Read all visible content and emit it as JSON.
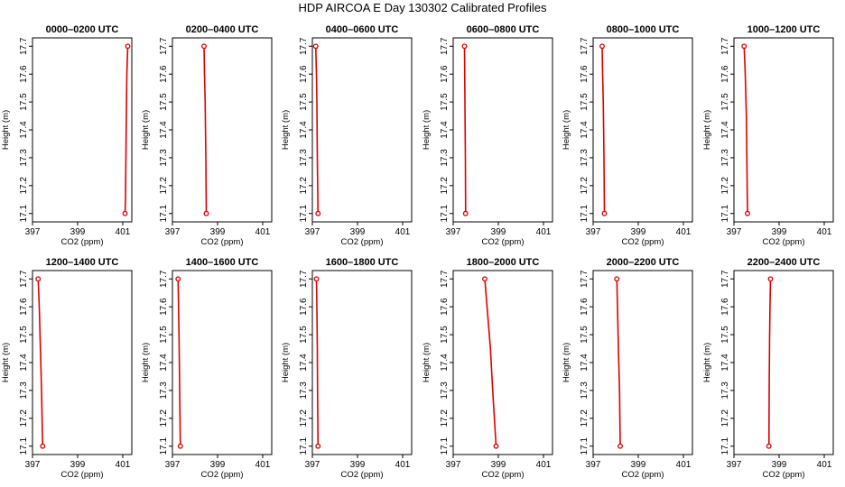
{
  "figure": {
    "title": "HDP AIRCOA E  Day 130302  Calibrated Profiles"
  },
  "colors": {
    "profile": "#dd0000",
    "axes": "#000000",
    "background": "#ffffff"
  },
  "chart_data": [
    {
      "type": "line",
      "title": "0000–0200 UTC",
      "xlabel": "CO2 (ppm)",
      "ylabel": "Height (m)",
      "xlim": [
        397,
        401.4
      ],
      "ylim": [
        17.07,
        17.73
      ],
      "xticks": [
        "397",
        "399",
        "401"
      ],
      "yticks": [
        "17.1",
        "17.2",
        "17.3",
        "17.4",
        "17.5",
        "17.6",
        "17.7"
      ],
      "series": [
        {
          "points": [
            [
              401.1,
              17.1
            ],
            [
              401.12,
              17.15
            ],
            [
              401.15,
              17.4
            ],
            [
              401.18,
              17.6
            ],
            [
              401.22,
              17.7
            ]
          ]
        }
      ]
    },
    {
      "type": "line",
      "title": "0200–0400 UTC",
      "xlabel": "CO2 (ppm)",
      "ylabel": "Height (m)",
      "xlim": [
        397,
        401.4
      ],
      "ylim": [
        17.07,
        17.73
      ],
      "xticks": [
        "397",
        "399",
        "401"
      ],
      "yticks": [
        "17.1",
        "17.2",
        "17.3",
        "17.4",
        "17.5",
        "17.6",
        "17.7"
      ],
      "series": [
        {
          "points": [
            [
              398.5,
              17.1
            ],
            [
              398.48,
              17.3
            ],
            [
              398.45,
              17.5
            ],
            [
              398.42,
              17.6
            ],
            [
              398.4,
              17.7
            ]
          ]
        }
      ]
    },
    {
      "type": "line",
      "title": "0400–0600 UTC",
      "xlabel": "CO2 (ppm)",
      "ylabel": "Height (m)",
      "xlim": [
        397,
        401.4
      ],
      "ylim": [
        17.07,
        17.73
      ],
      "xticks": [
        "397",
        "399",
        "401"
      ],
      "yticks": [
        "17.1",
        "17.2",
        "17.3",
        "17.4",
        "17.5",
        "17.6",
        "17.7"
      ],
      "series": [
        {
          "points": [
            [
              397.25,
              17.1
            ],
            [
              397.22,
              17.3
            ],
            [
              397.2,
              17.5
            ],
            [
              397.18,
              17.6
            ],
            [
              397.15,
              17.7
            ]
          ]
        }
      ]
    },
    {
      "type": "line",
      "title": "0600–0800 UTC",
      "xlabel": "CO2 (ppm)",
      "ylabel": "Height (m)",
      "xlim": [
        397,
        401.4
      ],
      "ylim": [
        17.07,
        17.73
      ],
      "xticks": [
        "397",
        "399",
        "401"
      ],
      "yticks": [
        "17.1",
        "17.2",
        "17.3",
        "17.4",
        "17.5",
        "17.6",
        "17.7"
      ],
      "series": [
        {
          "points": [
            [
              397.55,
              17.1
            ],
            [
              397.54,
              17.3
            ],
            [
              397.52,
              17.5
            ],
            [
              397.51,
              17.6
            ],
            [
              397.5,
              17.7
            ]
          ]
        }
      ]
    },
    {
      "type": "line",
      "title": "0800–1000 UTC",
      "xlabel": "CO2 (ppm)",
      "ylabel": "Height (m)",
      "xlim": [
        397,
        401.4
      ],
      "ylim": [
        17.07,
        17.73
      ],
      "xticks": [
        "397",
        "399",
        "401"
      ],
      "yticks": [
        "17.1",
        "17.2",
        "17.3",
        "17.4",
        "17.5",
        "17.6",
        "17.7"
      ],
      "series": [
        {
          "points": [
            [
              397.5,
              17.1
            ],
            [
              397.48,
              17.3
            ],
            [
              397.45,
              17.5
            ],
            [
              397.42,
              17.6
            ],
            [
              397.4,
              17.7
            ]
          ]
        }
      ]
    },
    {
      "type": "line",
      "title": "1000–1200 UTC",
      "xlabel": "CO2 (ppm)",
      "ylabel": "Height (m)",
      "xlim": [
        397,
        401.4
      ],
      "ylim": [
        17.07,
        17.73
      ],
      "xticks": [
        "397",
        "399",
        "401"
      ],
      "yticks": [
        "17.1",
        "17.2",
        "17.3",
        "17.4",
        "17.5",
        "17.6",
        "17.7"
      ],
      "series": [
        {
          "points": [
            [
              397.6,
              17.1
            ],
            [
              397.57,
              17.3
            ],
            [
              397.55,
              17.45
            ],
            [
              397.5,
              17.6
            ],
            [
              397.45,
              17.7
            ]
          ]
        }
      ]
    },
    {
      "type": "line",
      "title": "1200–1400 UTC",
      "xlabel": "CO2 (ppm)",
      "ylabel": "Height (m)",
      "xlim": [
        397,
        401.4
      ],
      "ylim": [
        17.07,
        17.73
      ],
      "xticks": [
        "397",
        "399",
        "401"
      ],
      "yticks": [
        "17.1",
        "17.2",
        "17.3",
        "17.4",
        "17.5",
        "17.6",
        "17.7"
      ],
      "series": [
        {
          "points": [
            [
              397.45,
              17.1
            ],
            [
              397.4,
              17.3
            ],
            [
              397.35,
              17.45
            ],
            [
              397.3,
              17.6
            ],
            [
              397.25,
              17.7
            ]
          ]
        }
      ]
    },
    {
      "type": "line",
      "title": "1400–1600 UTC",
      "xlabel": "CO2 (ppm)",
      "ylabel": "Height (m)",
      "xlim": [
        397,
        401.4
      ],
      "ylim": [
        17.07,
        17.73
      ],
      "xticks": [
        "397",
        "399",
        "401"
      ],
      "yticks": [
        "17.1",
        "17.2",
        "17.3",
        "17.4",
        "17.5",
        "17.6",
        "17.7"
      ],
      "series": [
        {
          "points": [
            [
              397.35,
              17.1
            ],
            [
              397.32,
              17.3
            ],
            [
              397.3,
              17.45
            ],
            [
              397.27,
              17.6
            ],
            [
              397.25,
              17.7
            ]
          ]
        }
      ]
    },
    {
      "type": "line",
      "title": "1600–1800 UTC",
      "xlabel": "CO2 (ppm)",
      "ylabel": "Height (m)",
      "xlim": [
        397,
        401.4
      ],
      "ylim": [
        17.07,
        17.73
      ],
      "xticks": [
        "397",
        "399",
        "401"
      ],
      "yticks": [
        "17.1",
        "17.2",
        "17.3",
        "17.4",
        "17.5",
        "17.6",
        "17.7"
      ],
      "series": [
        {
          "points": [
            [
              397.25,
              17.1
            ],
            [
              397.23,
              17.3
            ],
            [
              397.22,
              17.45
            ],
            [
              397.2,
              17.6
            ],
            [
              397.18,
              17.7
            ]
          ]
        }
      ]
    },
    {
      "type": "line",
      "title": "1800–2000 UTC",
      "xlabel": "CO2 (ppm)",
      "ylabel": "Height (m)",
      "xlim": [
        397,
        401.4
      ],
      "ylim": [
        17.07,
        17.73
      ],
      "xticks": [
        "397",
        "399",
        "401"
      ],
      "yticks": [
        "17.1",
        "17.2",
        "17.3",
        "17.4",
        "17.5",
        "17.6",
        "17.7"
      ],
      "series": [
        {
          "points": [
            [
              398.9,
              17.1
            ],
            [
              398.75,
              17.3
            ],
            [
              398.65,
              17.45
            ],
            [
              398.5,
              17.6
            ],
            [
              398.4,
              17.7
            ]
          ]
        }
      ]
    },
    {
      "type": "line",
      "title": "2000–2200 UTC",
      "xlabel": "CO2 (ppm)",
      "ylabel": "Height (m)",
      "xlim": [
        397,
        401.4
      ],
      "ylim": [
        17.07,
        17.73
      ],
      "xticks": [
        "397",
        "399",
        "401"
      ],
      "yticks": [
        "17.1",
        "17.2",
        "17.3",
        "17.4",
        "17.5",
        "17.6",
        "17.7"
      ],
      "series": [
        {
          "points": [
            [
              398.2,
              17.1
            ],
            [
              398.17,
              17.3
            ],
            [
              398.12,
              17.45
            ],
            [
              398.08,
              17.6
            ],
            [
              398.05,
              17.7
            ]
          ]
        }
      ]
    },
    {
      "type": "line",
      "title": "2200–2400 UTC",
      "xlabel": "CO2 (ppm)",
      "ylabel": "Height (m)",
      "xlim": [
        397,
        401.4
      ],
      "ylim": [
        17.07,
        17.73
      ],
      "xticks": [
        "397",
        "399",
        "401"
      ],
      "yticks": [
        "17.1",
        "17.2",
        "17.3",
        "17.4",
        "17.5",
        "17.6",
        "17.7"
      ],
      "series": [
        {
          "points": [
            [
              398.55,
              17.1
            ],
            [
              398.56,
              17.3
            ],
            [
              398.58,
              17.5
            ],
            [
              398.6,
              17.62
            ],
            [
              398.62,
              17.7
            ]
          ]
        }
      ]
    }
  ]
}
